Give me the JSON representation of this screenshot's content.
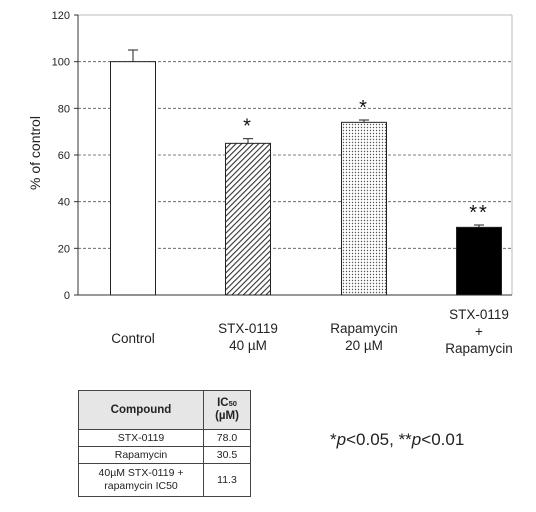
{
  "chart_data": {
    "type": "bar",
    "ylabel": "% of control",
    "ylim": [
      0,
      120
    ],
    "yticks": [
      0,
      20,
      40,
      60,
      80,
      100,
      120
    ],
    "grid": "horizontal dashed",
    "categories": [
      [
        "Control"
      ],
      [
        "STX-0119",
        "40 µM"
      ],
      [
        "Rapamycin",
        "20 µM"
      ],
      [
        "STX-0119",
        "+",
        "Rapamycin"
      ]
    ],
    "values": [
      100,
      65,
      74,
      29
    ],
    "errors": [
      5,
      2,
      1,
      1
    ],
    "significance": [
      "",
      "*",
      "*",
      "**"
    ],
    "fills": [
      "white",
      "diagonal-hatch",
      "dotted",
      "black"
    ]
  },
  "ic50_table": {
    "header_compound": "Compound",
    "header_ic_main": "IC",
    "header_ic_sub": "50",
    "header_unit": "(µM)",
    "rows": [
      {
        "compound": "STX-0119",
        "value": "78.0"
      },
      {
        "compound": "Rapamycin",
        "value": "30.5"
      },
      {
        "compound_line1": "40µM STX-0119 +",
        "compound_line2": "rapamycin IC50",
        "value": "11.3"
      }
    ]
  },
  "significance_note": {
    "star1": "*",
    "p1": "p",
    "text1": "<0.05, ",
    "star2": "**",
    "p2": "p",
    "text2": "<0.01"
  }
}
